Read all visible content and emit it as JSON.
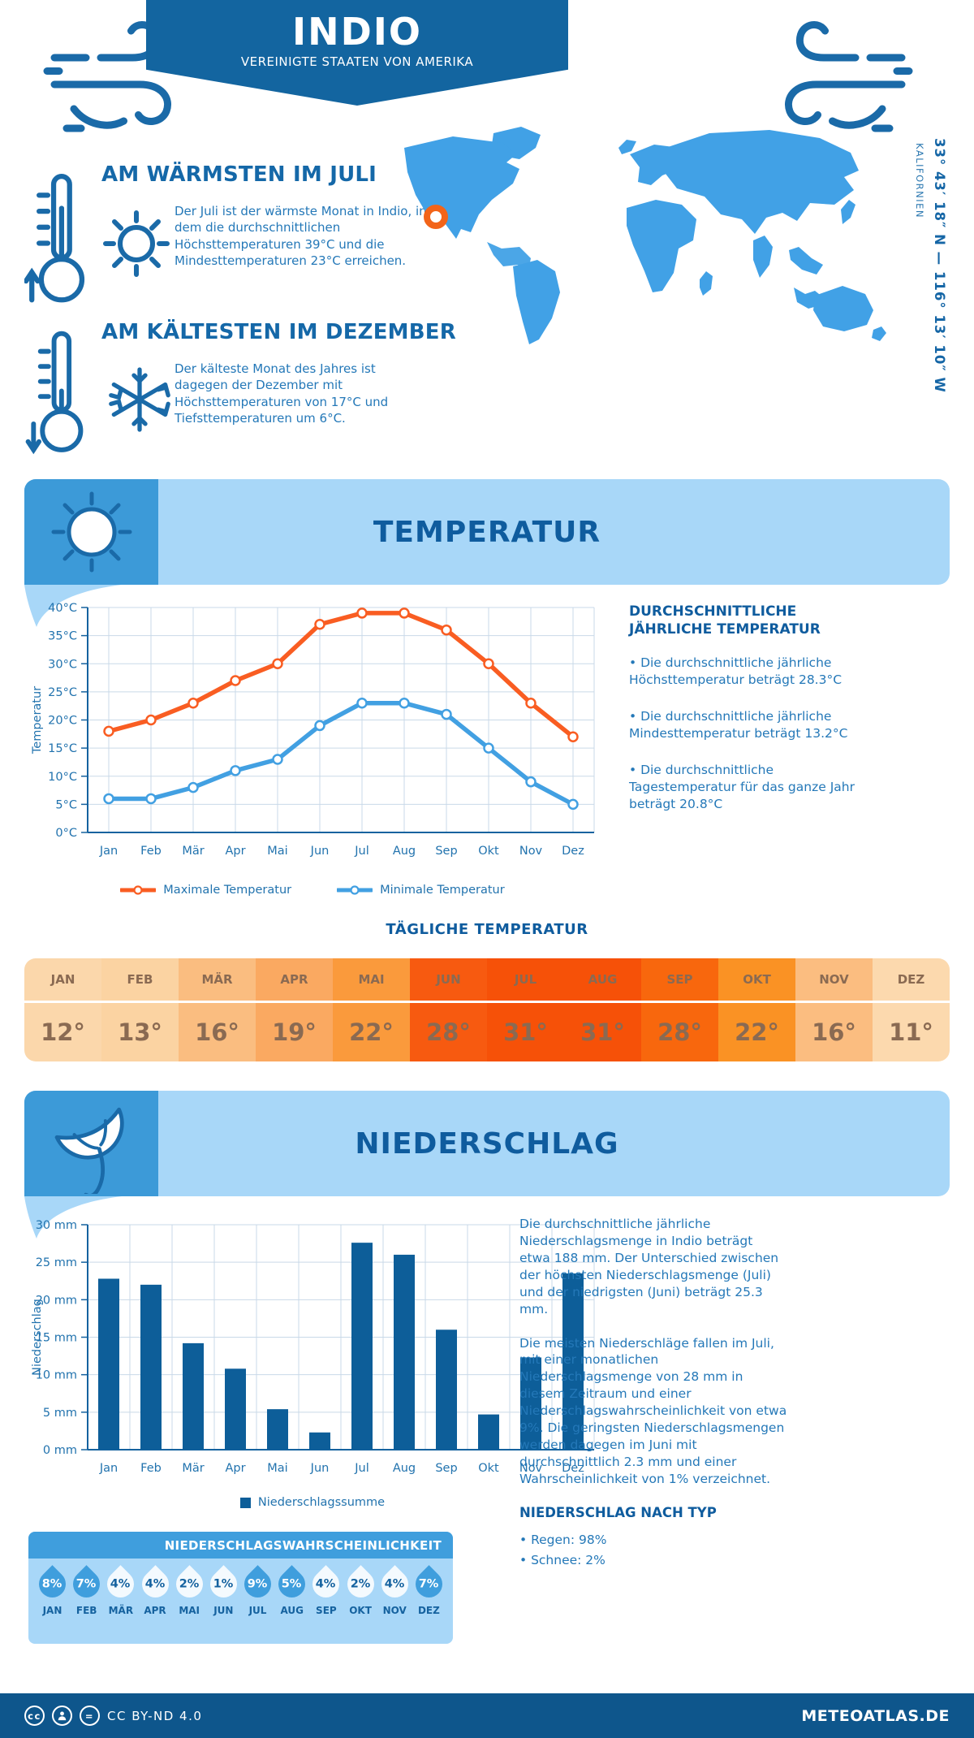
{
  "header": {
    "title": "INDIO",
    "subtitle": "VEREINIGTE STAATEN VON AMERIKA"
  },
  "intro": {
    "warm": {
      "title": "AM WÄRMSTEN IM JULI",
      "body": "Der Juli ist der wärmste Monat in Indio, in dem die durchschnittlichen Höchsttemperaturen 39°C und die Mindesttemperaturen 23°C erreichen."
    },
    "cold": {
      "title": "AM KÄLTESTEN IM DEZEMBER",
      "body": "Der kälteste Monat des Jahres ist dagegen der Dezember mit Höchsttemperaturen von 17°C und Tiefsttemperaturen um 6°C."
    },
    "map": {
      "coordinates": "33° 43′ 18″ N — 116° 13′ 10″ W",
      "region": "KALIFORNIEN",
      "marker_color": "#f26419",
      "map_color": "#41a1e6"
    }
  },
  "temperature": {
    "section_title": "TEMPERATUR",
    "summary_title": "DURCHSCHNITTLICHE JÄHRLICHE TEMPERATUR",
    "bullets": [
      "• Die durchschnittliche jährliche Höchsttemperatur beträgt 28.3°C",
      "• Die durchschnittliche jährliche Mindesttemperatur beträgt 13.2°C",
      "• Die durchschnittliche Tagestemperatur für das ganze Jahr beträgt 20.8°C"
    ],
    "daily_title": "TÄGLICHE TEMPERATUR",
    "monthly": {
      "months": [
        "JAN",
        "FEB",
        "MÄR",
        "APR",
        "MAI",
        "JUN",
        "JUL",
        "AUG",
        "SEP",
        "OKT",
        "NOV",
        "DEZ"
      ],
      "values": [
        "12°",
        "13°",
        "16°",
        "19°",
        "22°",
        "28°",
        "31°",
        "31°",
        "28°",
        "22°",
        "16°",
        "11°"
      ],
      "colors": [
        "#fbd7ab",
        "#fbd3a2",
        "#fabd80",
        "#faa961",
        "#fa9a3c",
        "#f75a10",
        "#f65108",
        "#f65108",
        "#f8670d",
        "#fa9224",
        "#fbbd80",
        "#fcd9ae"
      ],
      "text_color": "#8a6a52"
    }
  },
  "precipitation": {
    "section_title": "NIEDERSCHLAG",
    "paragraphs": [
      "Die durchschnittliche jährliche Niederschlagsmenge in Indio beträgt etwa 188 mm. Der Unterschied zwischen der höchsten Niederschlagsmenge (Juli) und der niedrigsten (Juni) beträgt 25.3 mm.",
      "Die meisten Niederschläge fallen im Juli, mit einer monatlichen Niederschlagsmenge von 28 mm in diesem Zeitraum und einer Niederschlagswahrscheinlichkeit von etwa 9%. Die geringsten Niederschlagsmengen werden dagegen im Juni mit durchschnittlich 2.3 mm und einer Wahrscheinlichkeit von 1% verzeichnet."
    ],
    "type_title": "NIEDERSCHLAG NACH TYP",
    "type_bullets": [
      "• Regen: 98%",
      "• Schnee: 2%"
    ],
    "probability": {
      "title": "NIEDERSCHLAGSWAHRSCHEINLICHKEIT",
      "months": [
        "JAN",
        "FEB",
        "MÄR",
        "APR",
        "MAI",
        "JUN",
        "JUL",
        "AUG",
        "SEP",
        "OKT",
        "NOV",
        "DEZ"
      ],
      "values": [
        "8%",
        "7%",
        "4%",
        "4%",
        "2%",
        "1%",
        "9%",
        "5%",
        "4%",
        "2%",
        "4%",
        "7%"
      ],
      "dark": [
        true,
        true,
        false,
        false,
        false,
        false,
        true,
        true,
        false,
        false,
        false,
        true
      ],
      "drop_dark_color": "#3f9edd",
      "drop_light_color": "#f4fafe"
    }
  },
  "footer": {
    "license": "CC BY-ND 4.0",
    "site": "METEOATLAS.DE"
  },
  "colors": {
    "header_blue": "#1365a0",
    "footer_blue": "#0e568c",
    "banner_light": "#a8d7f8",
    "banner_icon_bg": "#3c9ad8",
    "heading_blue": "#0f5c9e",
    "body_blue": "#2478b8",
    "axis_blue": "#2273ae",
    "axis_line": "#15629f",
    "grid": "#c9d9e8",
    "bar": "#0d5e99",
    "max_line": "#f95d22",
    "min_line": "#42a0e2",
    "icon_stroke": "#1a6aa8"
  },
  "chart_data": [
    {
      "type": "line",
      "title": "",
      "categories": [
        "Jan",
        "Feb",
        "Mär",
        "Apr",
        "Mai",
        "Jun",
        "Jul",
        "Aug",
        "Sep",
        "Okt",
        "Nov",
        "Dez"
      ],
      "series": [
        {
          "name": "Maximale Temperatur",
          "color": "#f95d22",
          "values": [
            18,
            20,
            23,
            27,
            30,
            37,
            39,
            39,
            36,
            30,
            23,
            17
          ]
        },
        {
          "name": "Minimale Temperatur",
          "color": "#42a0e2",
          "values": [
            6,
            6,
            8,
            11,
            13,
            19,
            23,
            23,
            21,
            15,
            9,
            5
          ]
        }
      ],
      "ylabel": "Temperatur",
      "ylim": [
        0,
        40
      ],
      "ytick_step": 5,
      "ytick_suffix": "°C",
      "grid": true,
      "legend_position": "bottom"
    },
    {
      "type": "bar",
      "title": "",
      "categories": [
        "Jan",
        "Feb",
        "Mär",
        "Apr",
        "Mai",
        "Jun",
        "Jul",
        "Aug",
        "Sep",
        "Okt",
        "Nov",
        "Dez"
      ],
      "series": [
        {
          "name": "Niederschlagssumme",
          "color": "#0d5e99",
          "values": [
            22.8,
            22,
            14.2,
            10.8,
            5.4,
            2.3,
            27.6,
            26,
            16,
            4.7,
            12.3,
            23.5
          ]
        }
      ],
      "ylabel": "Niederschlag",
      "ylim": [
        0,
        30
      ],
      "ytick_step": 5,
      "ytick_suffix": " mm",
      "grid": true,
      "legend_position": "bottom"
    }
  ]
}
